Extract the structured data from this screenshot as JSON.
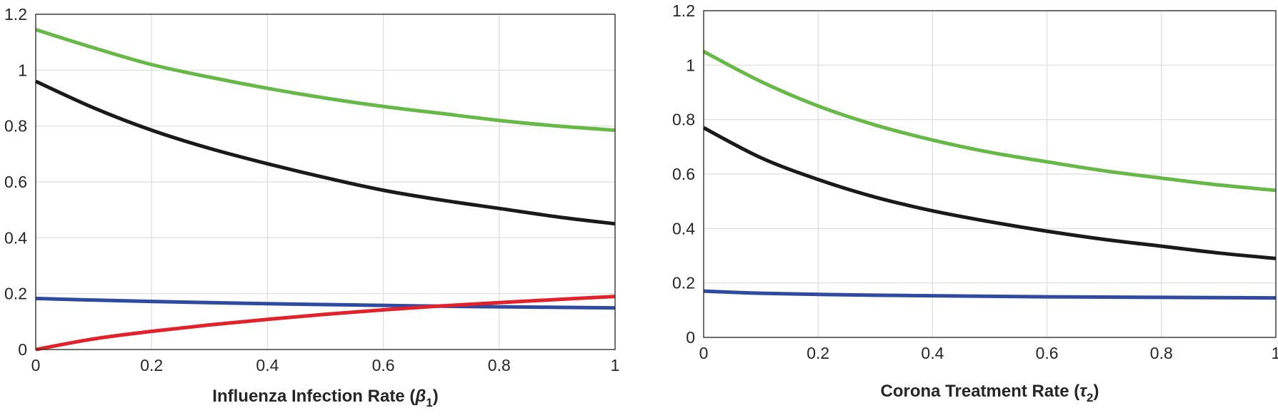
{
  "chart_data": [
    {
      "type": "line",
      "title": "",
      "xlabel": "Influenza Infection Rate (",
      "xlabel_symbol": "β",
      "xlabel_subscript": "1",
      "xlabel_close": ")",
      "ylabel": "",
      "xlim": [
        0,
        1
      ],
      "ylim": [
        0,
        1.2
      ],
      "xticks": [
        "0",
        "0.2",
        "0.4",
        "0.6",
        "0.8",
        "1"
      ],
      "yticks": [
        "0",
        "0.2",
        "0.4",
        "0.6",
        "0.8",
        "1",
        "1.2"
      ],
      "grid": true,
      "x": [
        0,
        0.1,
        0.2,
        0.3,
        0.4,
        0.5,
        0.6,
        0.7,
        0.8,
        0.9,
        1.0
      ],
      "series": [
        {
          "name": "green",
          "color": "#67b947",
          "values": [
            1.145,
            1.08,
            1.02,
            0.975,
            0.935,
            0.9,
            0.87,
            0.845,
            0.82,
            0.8,
            0.785
          ]
        },
        {
          "name": "black",
          "color": "#1a1a1a",
          "values": [
            0.96,
            0.865,
            0.785,
            0.72,
            0.665,
            0.615,
            0.57,
            0.535,
            0.505,
            0.475,
            0.45
          ]
        },
        {
          "name": "blue",
          "color": "#2f4aa1",
          "values": [
            0.183,
            0.177,
            0.172,
            0.168,
            0.164,
            0.161,
            0.158,
            0.155,
            0.153,
            0.151,
            0.149
          ]
        },
        {
          "name": "red",
          "color": "#e3212a",
          "values": [
            0.0,
            0.038,
            0.065,
            0.088,
            0.108,
            0.126,
            0.142,
            0.156,
            0.168,
            0.179,
            0.19
          ]
        }
      ]
    },
    {
      "type": "line",
      "title": "",
      "xlabel": "Corona Treatment Rate (",
      "xlabel_symbol": "τ",
      "xlabel_subscript": "2",
      "xlabel_close": ")",
      "ylabel": "",
      "xlim": [
        0,
        1
      ],
      "ylim": [
        0,
        1.2
      ],
      "xticks": [
        "0",
        "0.2",
        "0.4",
        "0.6",
        "0.8",
        "1"
      ],
      "yticks": [
        "0",
        "0.2",
        "0.4",
        "0.6",
        "0.8",
        "1",
        "1.2"
      ],
      "grid": true,
      "x": [
        0,
        0.1,
        0.2,
        0.3,
        0.4,
        0.5,
        0.6,
        0.7,
        0.8,
        0.9,
        1.0
      ],
      "series": [
        {
          "name": "green",
          "color": "#67b947",
          "values": [
            1.05,
            0.94,
            0.85,
            0.78,
            0.725,
            0.68,
            0.645,
            0.612,
            0.585,
            0.56,
            0.54
          ]
        },
        {
          "name": "black",
          "color": "#1a1a1a",
          "values": [
            0.77,
            0.66,
            0.58,
            0.515,
            0.465,
            0.425,
            0.39,
            0.36,
            0.335,
            0.31,
            0.29
          ]
        },
        {
          "name": "blue",
          "color": "#2f4aa1",
          "values": [
            0.17,
            0.162,
            0.158,
            0.155,
            0.153,
            0.151,
            0.149,
            0.148,
            0.147,
            0.146,
            0.145
          ]
        }
      ]
    }
  ]
}
